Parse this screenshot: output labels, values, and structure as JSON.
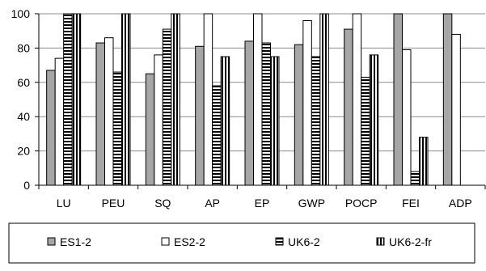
{
  "chart_data": {
    "type": "bar",
    "title": "",
    "xlabel": "",
    "ylabel": "",
    "ylim": [
      0,
      100
    ],
    "yticks": [
      0,
      20,
      40,
      60,
      80,
      100
    ],
    "categories": [
      "LU",
      "PEU",
      "SQ",
      "AP",
      "EP",
      "GWP",
      "POCP",
      "FEI",
      "ADP"
    ],
    "series": [
      {
        "name": "ES1-2",
        "pattern": "solid-gray",
        "values": [
          67,
          83,
          65,
          81,
          84,
          82,
          91,
          100,
          100
        ]
      },
      {
        "name": "ES2-2",
        "pattern": "white",
        "values": [
          74,
          86,
          76,
          100,
          100,
          96,
          100,
          79,
          88
        ]
      },
      {
        "name": "UK6-2",
        "pattern": "horizontal-stripes",
        "values": [
          100,
          66,
          91,
          58,
          83,
          75,
          63,
          8,
          0
        ]
      },
      {
        "name": "UK6-2-fr",
        "pattern": "vertical-stripes",
        "values": [
          100,
          100,
          100,
          75,
          75,
          100,
          76,
          28,
          0
        ]
      }
    ],
    "grid": "horizontal",
    "legend_position": "bottom",
    "colors": {
      "gray": "#a6a6a6",
      "white": "#ffffff",
      "stroke": "#000000",
      "gridline": "#8c8c8c"
    }
  }
}
